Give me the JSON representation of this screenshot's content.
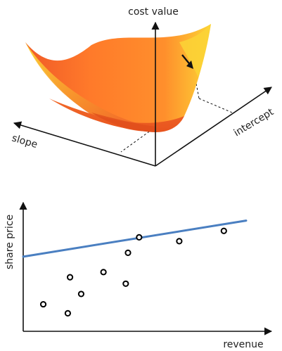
{
  "surface_plot": {
    "axes": {
      "vertical_label": "cost value",
      "slope_label": "slope",
      "intercept_label": "intercept"
    },
    "colors": {
      "surface_edge": "#f05a28",
      "surface_inner": "#ff7a2a",
      "surface_highlight": "#fcd436",
      "surface_base": "#e8541e",
      "axis": "#111111"
    },
    "gradient_arrow_icon": "arrow-down-right-icon"
  },
  "chart_data": {
    "type": "scatter",
    "xlabel": "revenue",
    "ylabel": "share price",
    "xlim": [
      0,
      10
    ],
    "ylim": [
      0,
      10
    ],
    "grid": false,
    "points": [
      {
        "x": 0.9,
        "y": 2.1
      },
      {
        "x": 2.0,
        "y": 1.4
      },
      {
        "x": 2.1,
        "y": 4.2
      },
      {
        "x": 2.6,
        "y": 2.9
      },
      {
        "x": 3.6,
        "y": 4.6
      },
      {
        "x": 4.6,
        "y": 3.7
      },
      {
        "x": 4.7,
        "y": 6.1
      },
      {
        "x": 5.2,
        "y": 7.3
      },
      {
        "x": 7.0,
        "y": 7.0
      },
      {
        "x": 9.0,
        "y": 7.8
      }
    ],
    "fit_line": {
      "x": [
        0,
        10
      ],
      "y": [
        5.8,
        8.6
      ]
    },
    "colors": {
      "marker": "#000000",
      "fit_line": "#4a7fc1",
      "axis": "#111111"
    }
  }
}
